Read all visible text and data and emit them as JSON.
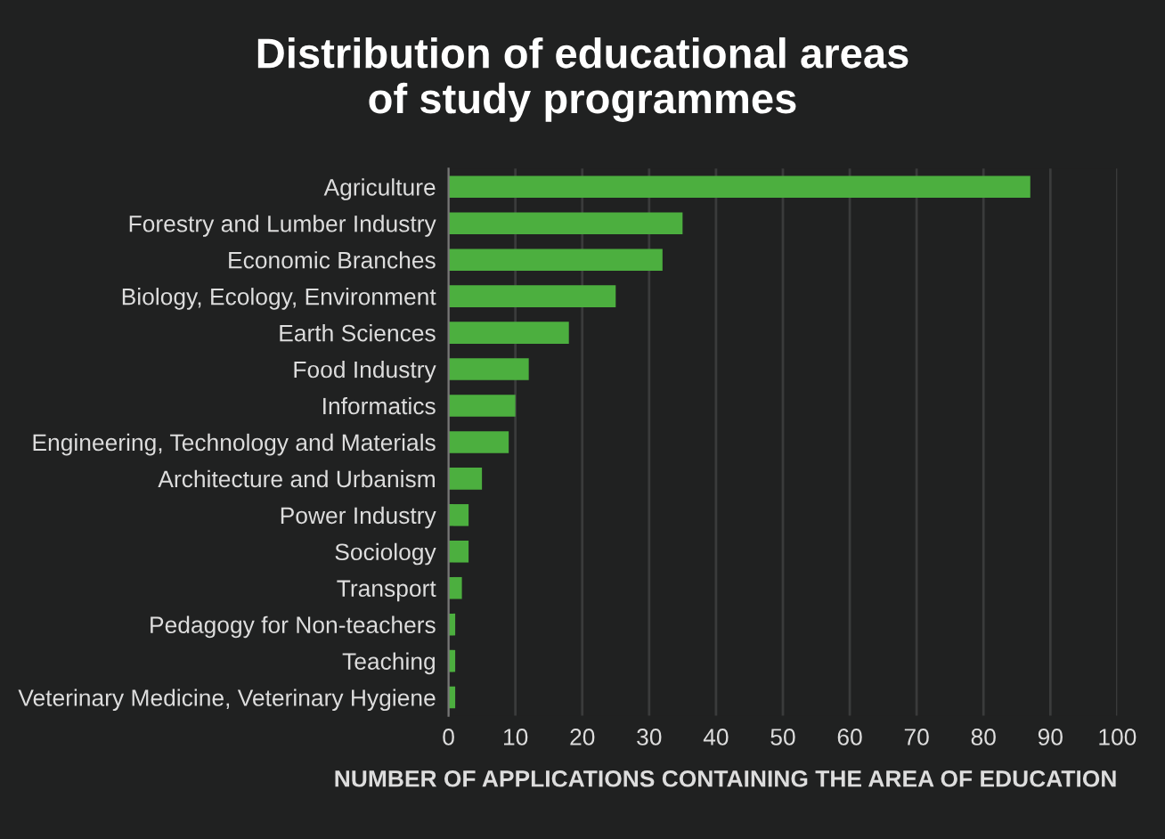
{
  "chart_data": {
    "type": "bar",
    "orientation": "horizontal",
    "title": "Distribution of educational areas\nof study programmes",
    "xlabel": "NUMBER OF APPLICATIONS CONTAINING THE AREA OF EDUCATION",
    "categories": [
      "Agriculture",
      "Forestry and Lumber Industry",
      "Economic Branches",
      "Biology, Ecology, Environment",
      "Earth Sciences",
      "Food Industry",
      "Informatics",
      "Engineering, Technology and Materials",
      "Architecture and Urbanism",
      "Power Industry",
      "Sociology",
      "Transport",
      "Pedagogy for Non-teachers",
      "Teaching",
      "Veterinary Medicine, Veterinary Hygiene"
    ],
    "values": [
      87,
      35,
      32,
      25,
      18,
      12,
      10,
      9,
      5,
      3,
      3,
      2,
      1,
      1,
      1
    ],
    "color": "#4caf3f",
    "xlim": [
      0,
      100
    ],
    "xticks": [
      0,
      10,
      20,
      30,
      40,
      50,
      60,
      70,
      80,
      90,
      100
    ],
    "grid": "x"
  }
}
